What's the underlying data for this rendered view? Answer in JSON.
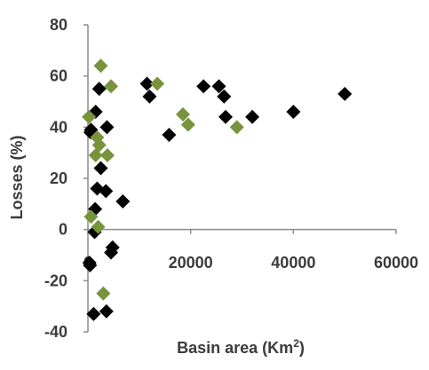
{
  "chart_data": {
    "type": "scatter",
    "title": "",
    "xlabel": {
      "pre": "Basin area (Km",
      "sup": "2",
      "post": ")"
    },
    "ylabel": "Losses (%)",
    "xlim": [
      0,
      60000
    ],
    "ylim": [
      -40,
      80
    ],
    "xticks": [
      "0",
      "20000",
      "40000",
      "60000"
    ],
    "yticks": [
      "-40",
      "-20",
      "0",
      "20",
      "40",
      "60",
      "80"
    ],
    "xtick_values": [
      0,
      20000,
      40000,
      60000
    ],
    "ytick_values": [
      -40,
      -20,
      0,
      20,
      40,
      60,
      80
    ],
    "grid": false,
    "legend": "none",
    "series": [
      {
        "color": "#000000",
        "marker": "diamond",
        "points": [
          {
            "x": 500,
            "y": 38
          },
          {
            "x": 600,
            "y": 39
          },
          {
            "x": 1500,
            "y": 46
          },
          {
            "x": 2200,
            "y": 55
          },
          {
            "x": 3700,
            "y": 40
          },
          {
            "x": 2500,
            "y": 24
          },
          {
            "x": 1800,
            "y": 16
          },
          {
            "x": 3500,
            "y": 15
          },
          {
            "x": 6800,
            "y": 11
          },
          {
            "x": 1400,
            "y": 8
          },
          {
            "x": 1300,
            "y": -1
          },
          {
            "x": 4800,
            "y": -7
          },
          {
            "x": 4500,
            "y": -9
          },
          {
            "x": 300,
            "y": -13
          },
          {
            "x": 400,
            "y": -14
          },
          {
            "x": 1100,
            "y": -33
          },
          {
            "x": 3600,
            "y": -32
          },
          {
            "x": 11500,
            "y": 57
          },
          {
            "x": 12000,
            "y": 52
          },
          {
            "x": 15800,
            "y": 37
          },
          {
            "x": 22500,
            "y": 56
          },
          {
            "x": 25500,
            "y": 56
          },
          {
            "x": 26500,
            "y": 52
          },
          {
            "x": 26800,
            "y": 44
          },
          {
            "x": 32000,
            "y": 44
          },
          {
            "x": 40000,
            "y": 46
          },
          {
            "x": 50000,
            "y": 53
          }
        ]
      },
      {
        "color": "#77933c",
        "marker": "diamond",
        "points": [
          {
            "x": 2500,
            "y": 64
          },
          {
            "x": 4500,
            "y": 56
          },
          {
            "x": 200,
            "y": 44
          },
          {
            "x": 1800,
            "y": 36
          },
          {
            "x": 2200,
            "y": 33
          },
          {
            "x": 1500,
            "y": 29
          },
          {
            "x": 3800,
            "y": 29
          },
          {
            "x": 600,
            "y": 5
          },
          {
            "x": 2000,
            "y": 1
          },
          {
            "x": 3000,
            "y": -25
          },
          {
            "x": 13500,
            "y": 57
          },
          {
            "x": 18500,
            "y": 45
          },
          {
            "x": 19500,
            "y": 41
          },
          {
            "x": 29000,
            "y": 40
          }
        ]
      }
    ]
  }
}
